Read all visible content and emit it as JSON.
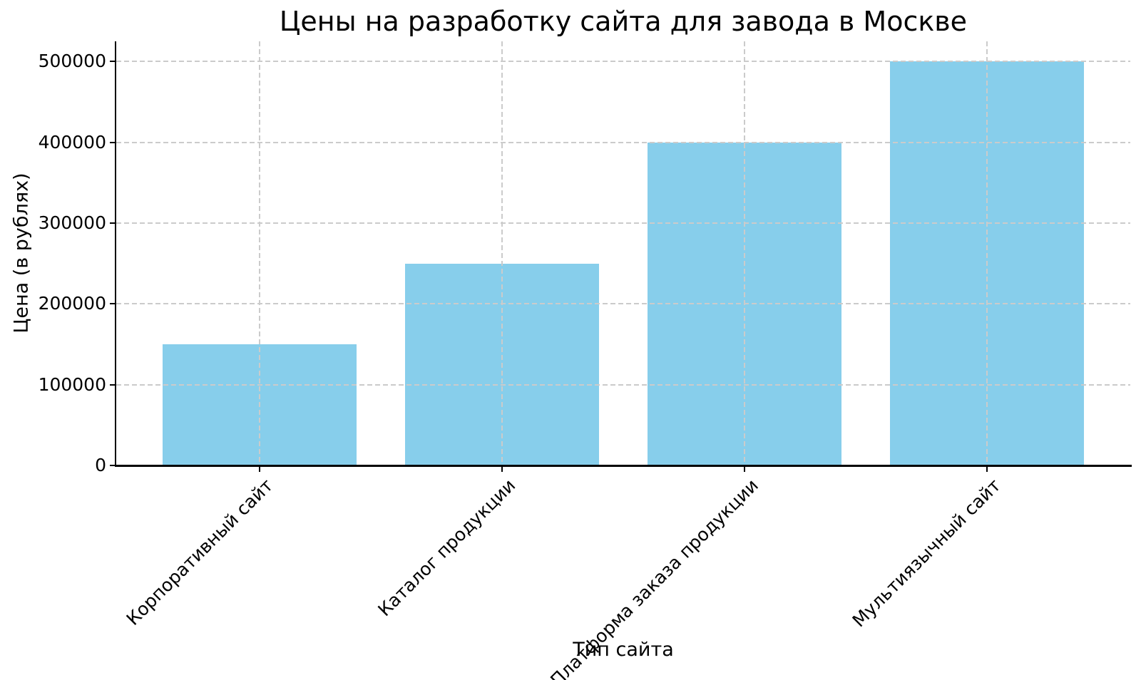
{
  "chart_data": {
    "type": "bar",
    "title": "Цены на разработку сайта для завода в Москве",
    "xlabel": "Тип сайта",
    "ylabel": "Цена (в рублях)",
    "categories": [
      "Корпоративный сайт",
      "Каталог продукции",
      "Платформа заказа продукции",
      "Мультиязычный сайт"
    ],
    "values": [
      150000,
      250000,
      400000,
      500000
    ],
    "yticks": [
      0,
      100000,
      200000,
      300000,
      400000,
      500000
    ],
    "ytick_labels": [
      "0",
      "100000",
      "200000",
      "300000",
      "400000",
      "500000"
    ],
    "ylim": [
      0,
      525000
    ],
    "bar_color": "#87CEEB",
    "grid": "dashed",
    "grid_color": "#cbcbcb",
    "legend": "none"
  }
}
